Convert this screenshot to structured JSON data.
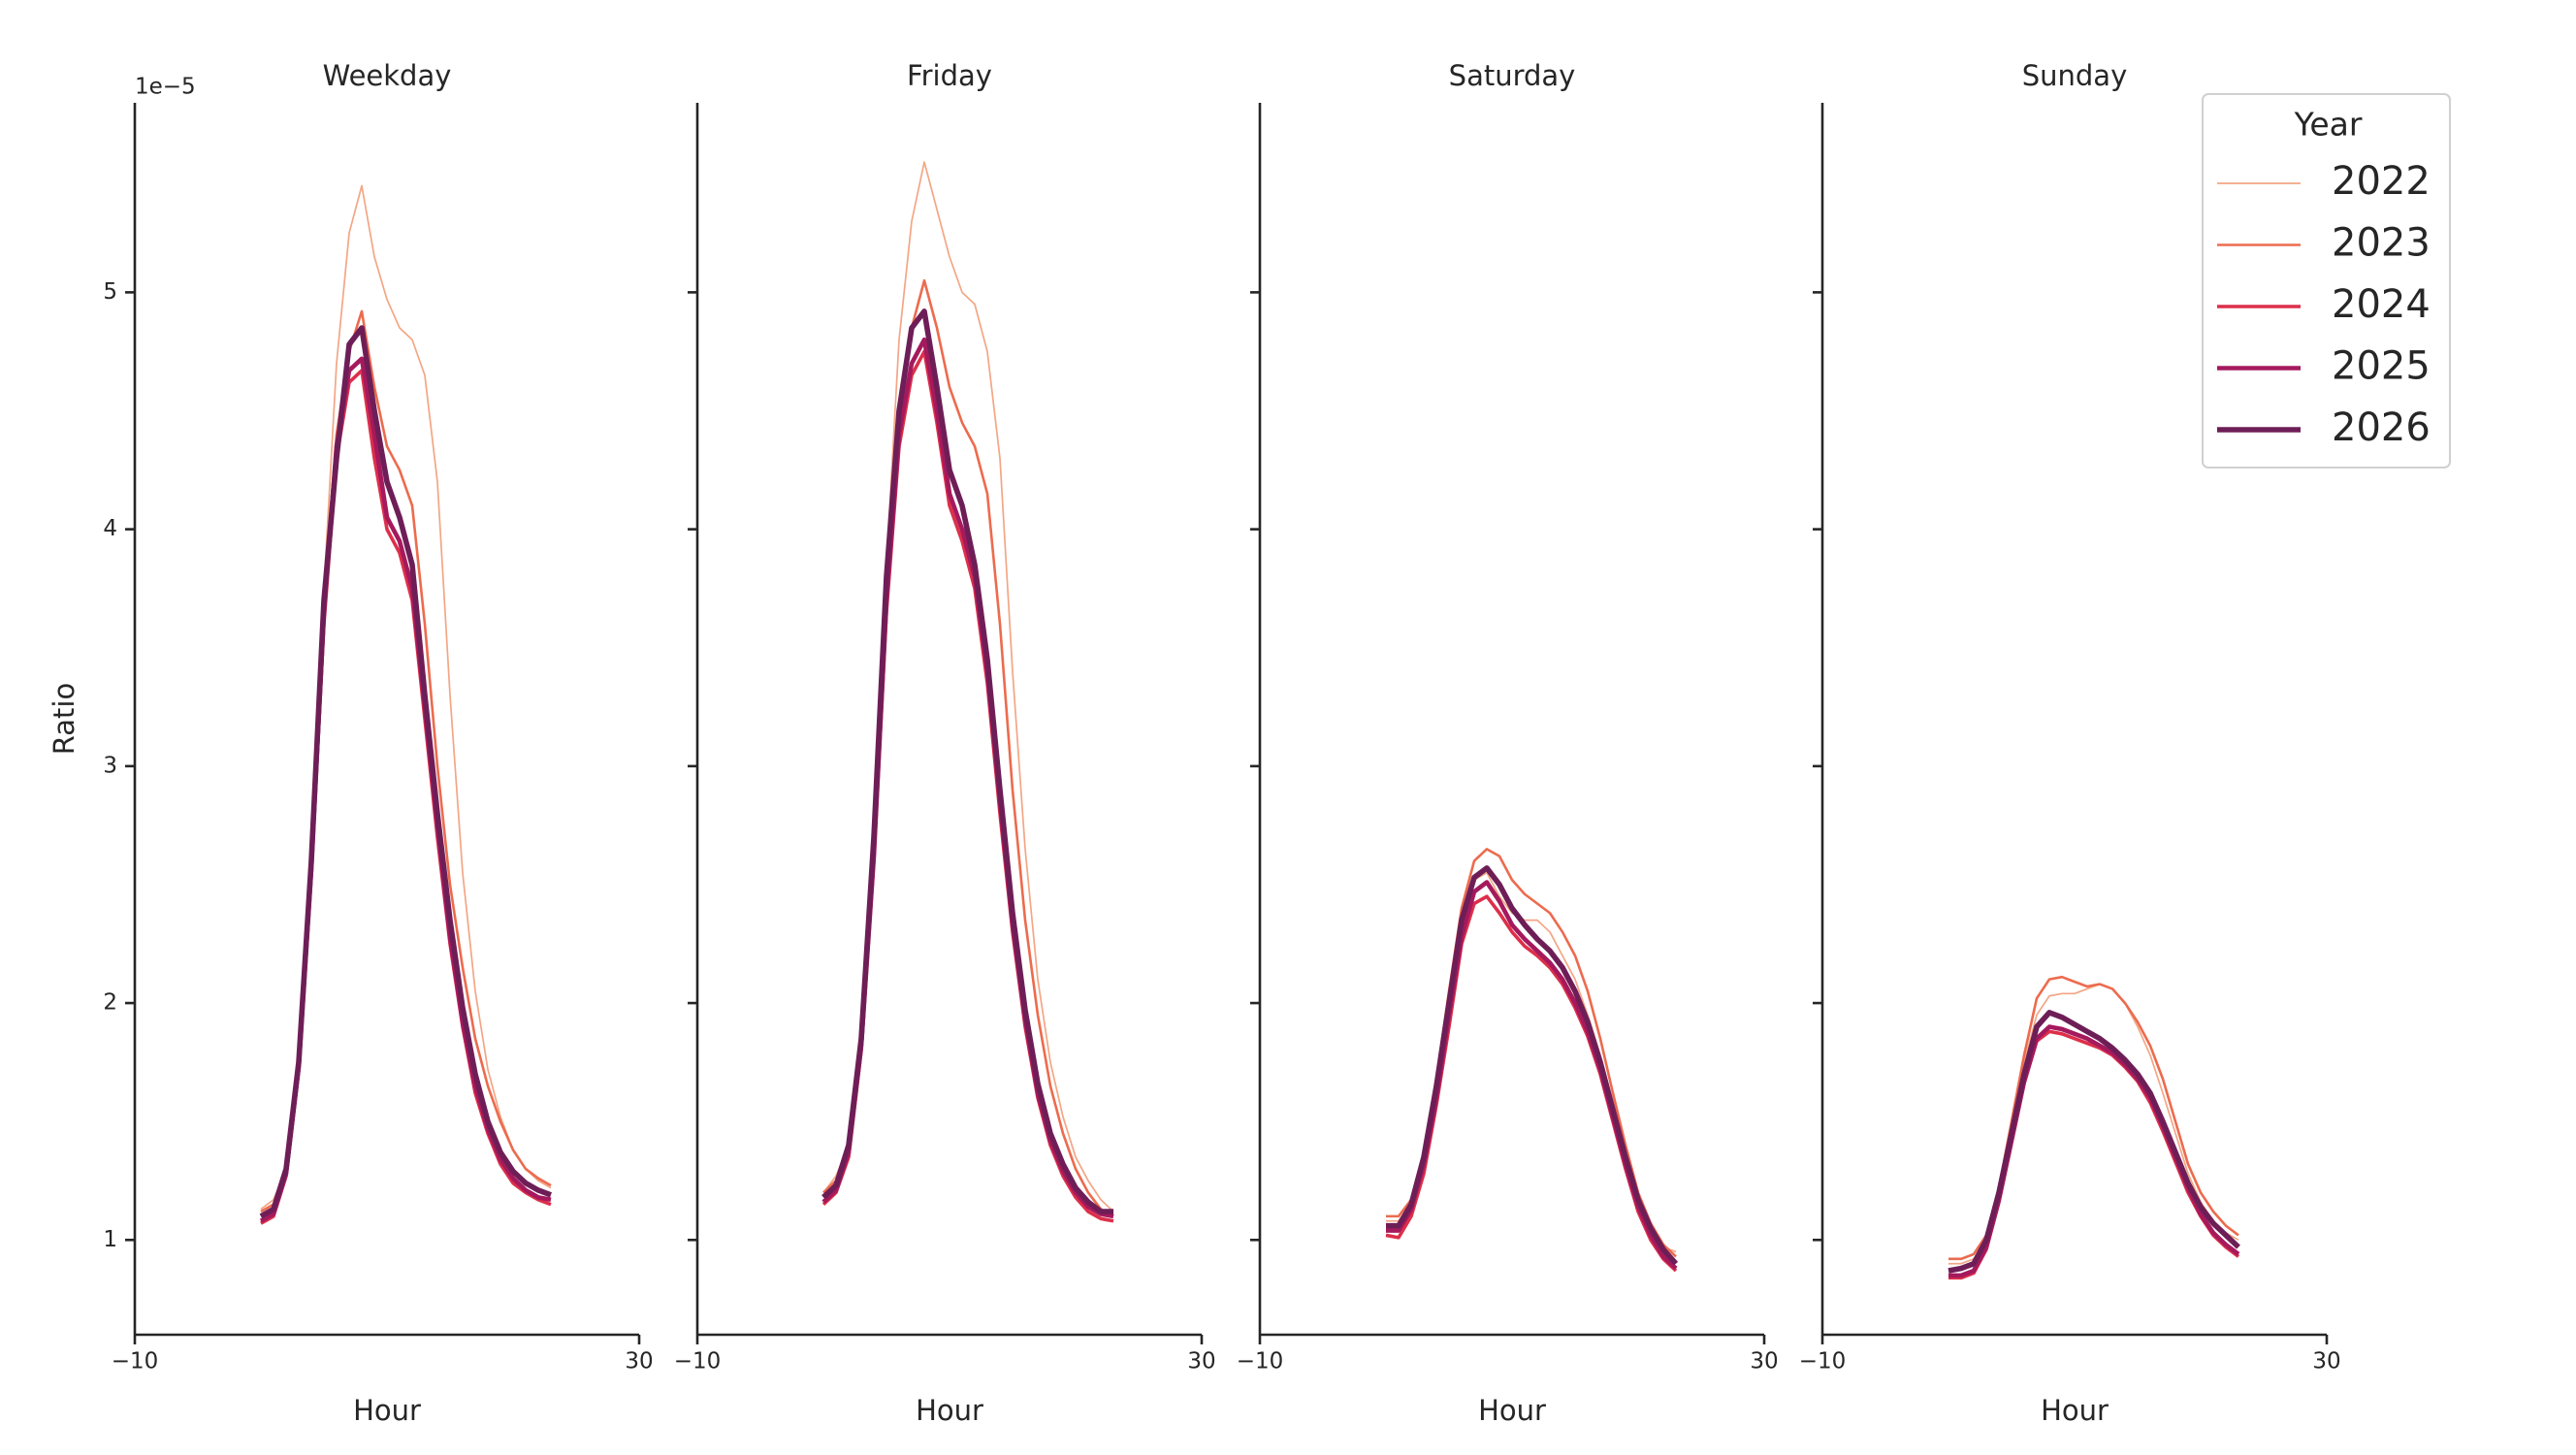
{
  "chart_data": [
    {
      "type": "line",
      "title": "Weekday",
      "x_label": "Hour",
      "y_label": "Ratio",
      "y_offset_label": "1e−5",
      "ytick_labels": true,
      "legend_title": "Year",
      "legend": "upper right",
      "x": [
        0,
        1,
        2,
        3,
        4,
        5,
        6,
        7,
        8,
        9,
        10,
        11,
        12,
        13,
        14,
        15,
        16,
        17,
        18,
        19,
        20,
        21,
        22,
        23
      ],
      "xlim": [
        -10,
        30
      ],
      "xticks": [
        {
          "value": -10,
          "label": "−10"
        },
        30
      ],
      "ylim": [
        0.6,
        5.8
      ],
      "yticks": [
        1,
        2,
        3,
        4,
        5
      ],
      "series": [
        {
          "name": "2022",
          "color": "#f3a685",
          "values": [
            1.13,
            1.17,
            1.3,
            1.75,
            2.6,
            3.75,
            4.7,
            5.25,
            5.45,
            5.15,
            4.97,
            4.85,
            4.8,
            4.65,
            4.2,
            3.3,
            2.55,
            2.05,
            1.72,
            1.52,
            1.38,
            1.3,
            1.25,
            1.22
          ]
        },
        {
          "name": "2023",
          "color": "#ec6b4e",
          "values": [
            1.12,
            1.15,
            1.3,
            1.75,
            2.6,
            3.7,
            4.4,
            4.75,
            4.92,
            4.6,
            4.35,
            4.25,
            4.1,
            3.6,
            3.0,
            2.5,
            2.15,
            1.85,
            1.65,
            1.5,
            1.38,
            1.3,
            1.26,
            1.23
          ]
        },
        {
          "name": "2024",
          "color": "#dd2f4a",
          "values": [
            1.07,
            1.1,
            1.27,
            1.72,
            2.55,
            3.6,
            4.3,
            4.62,
            4.67,
            4.3,
            4.0,
            3.9,
            3.7,
            3.2,
            2.7,
            2.25,
            1.9,
            1.62,
            1.45,
            1.32,
            1.24,
            1.2,
            1.17,
            1.15
          ]
        },
        {
          "name": "2025",
          "color": "#a5195d",
          "values": [
            1.08,
            1.11,
            1.28,
            1.73,
            2.57,
            3.65,
            4.35,
            4.67,
            4.72,
            4.4,
            4.05,
            3.95,
            3.75,
            3.25,
            2.75,
            2.28,
            1.92,
            1.65,
            1.47,
            1.34,
            1.26,
            1.21,
            1.18,
            1.17
          ]
        },
        {
          "name": "2026",
          "color": "#6e1e57",
          "values": [
            1.1,
            1.13,
            1.3,
            1.75,
            2.6,
            3.7,
            4.3,
            4.78,
            4.85,
            4.5,
            4.2,
            4.05,
            3.85,
            3.3,
            2.8,
            2.35,
            1.98,
            1.7,
            1.5,
            1.37,
            1.29,
            1.24,
            1.21,
            1.19
          ]
        }
      ]
    },
    {
      "type": "line",
      "title": "Friday",
      "x_label": "Hour",
      "ytick_labels": false,
      "x": [
        0,
        1,
        2,
        3,
        4,
        5,
        6,
        7,
        8,
        9,
        10,
        11,
        12,
        13,
        14,
        15,
        16,
        17,
        18,
        19,
        20,
        21,
        22,
        23
      ],
      "xlim": [
        -10,
        30
      ],
      "xticks": [
        {
          "value": -10,
          "label": "−10"
        },
        30
      ],
      "ylim": [
        0.6,
        5.8
      ],
      "yticks": [
        1,
        2,
        3,
        4,
        5
      ],
      "series": [
        {
          "color": "#f3a685",
          "values": [
            1.2,
            1.27,
            1.4,
            1.85,
            2.7,
            3.85,
            4.8,
            5.3,
            5.55,
            5.35,
            5.15,
            5.0,
            4.95,
            4.75,
            4.3,
            3.4,
            2.65,
            2.1,
            1.75,
            1.52,
            1.35,
            1.25,
            1.17,
            1.12
          ]
        },
        {
          "color": "#ec6b4e",
          "values": [
            1.2,
            1.25,
            1.4,
            1.85,
            2.7,
            3.8,
            4.5,
            4.85,
            5.05,
            4.85,
            4.6,
            4.45,
            4.35,
            4.15,
            3.6,
            2.9,
            2.35,
            1.95,
            1.65,
            1.45,
            1.3,
            1.2,
            1.13,
            1.1
          ]
        },
        {
          "color": "#dd2f4a",
          "values": [
            1.15,
            1.2,
            1.35,
            1.8,
            2.6,
            3.65,
            4.35,
            4.65,
            4.75,
            4.45,
            4.1,
            3.95,
            3.75,
            3.35,
            2.8,
            2.3,
            1.9,
            1.6,
            1.4,
            1.27,
            1.18,
            1.12,
            1.09,
            1.08
          ]
        },
        {
          "color": "#a5195d",
          "values": [
            1.16,
            1.21,
            1.37,
            1.82,
            2.62,
            3.7,
            4.4,
            4.7,
            4.8,
            4.5,
            4.15,
            4.0,
            3.8,
            3.4,
            2.85,
            2.33,
            1.93,
            1.62,
            1.42,
            1.29,
            1.2,
            1.14,
            1.11,
            1.1
          ]
        },
        {
          "color": "#6e1e57",
          "values": [
            1.18,
            1.23,
            1.4,
            1.85,
            2.7,
            3.8,
            4.5,
            4.85,
            4.92,
            4.6,
            4.25,
            4.1,
            3.85,
            3.45,
            2.9,
            2.38,
            1.97,
            1.66,
            1.45,
            1.32,
            1.22,
            1.16,
            1.12,
            1.12
          ]
        }
      ]
    },
    {
      "type": "line",
      "title": "Saturday",
      "x_label": "Hour",
      "ytick_labels": false,
      "x": [
        0,
        1,
        2,
        3,
        4,
        5,
        6,
        7,
        8,
        9,
        10,
        11,
        12,
        13,
        14,
        15,
        16,
        17,
        18,
        19,
        20,
        21,
        22,
        23
      ],
      "xlim": [
        -10,
        30
      ],
      "xticks": [
        {
          "value": -10,
          "label": "−10"
        },
        30
      ],
      "ylim": [
        0.6,
        5.8
      ],
      "yticks": [
        1,
        2,
        3,
        4,
        5
      ],
      "series": [
        {
          "color": "#f3a685",
          "values": [
            1.08,
            1.08,
            1.16,
            1.35,
            1.65,
            2.02,
            2.35,
            2.52,
            2.55,
            2.45,
            2.38,
            2.35,
            2.35,
            2.3,
            2.2,
            2.1,
            1.95,
            1.78,
            1.58,
            1.37,
            1.18,
            1.06,
            0.97,
            0.95
          ]
        },
        {
          "color": "#ec6b4e",
          "values": [
            1.1,
            1.1,
            1.17,
            1.37,
            1.68,
            2.05,
            2.4,
            2.6,
            2.65,
            2.62,
            2.52,
            2.46,
            2.42,
            2.38,
            2.3,
            2.2,
            2.05,
            1.85,
            1.62,
            1.4,
            1.2,
            1.07,
            0.98,
            0.93
          ]
        },
        {
          "color": "#dd2f4a",
          "values": [
            1.02,
            1.01,
            1.1,
            1.28,
            1.57,
            1.9,
            2.25,
            2.42,
            2.45,
            2.38,
            2.3,
            2.24,
            2.2,
            2.15,
            2.08,
            1.98,
            1.86,
            1.7,
            1.5,
            1.3,
            1.12,
            1.0,
            0.92,
            0.87
          ]
        },
        {
          "color": "#a5195d",
          "values": [
            1.04,
            1.04,
            1.13,
            1.32,
            1.6,
            1.95,
            2.28,
            2.47,
            2.51,
            2.43,
            2.33,
            2.27,
            2.22,
            2.17,
            2.1,
            2.0,
            1.88,
            1.72,
            1.52,
            1.32,
            1.14,
            1.02,
            0.93,
            0.88
          ]
        },
        {
          "color": "#6e1e57",
          "values": [
            1.06,
            1.06,
            1.15,
            1.35,
            1.65,
            2.0,
            2.35,
            2.53,
            2.57,
            2.5,
            2.4,
            2.33,
            2.27,
            2.22,
            2.15,
            2.05,
            1.92,
            1.75,
            1.55,
            1.35,
            1.17,
            1.05,
            0.96,
            0.9
          ]
        }
      ]
    },
    {
      "type": "line",
      "title": "Sunday",
      "x_label": "Hour",
      "ytick_labels": false,
      "x": [
        0,
        1,
        2,
        3,
        4,
        5,
        6,
        7,
        8,
        9,
        10,
        11,
        12,
        13,
        14,
        15,
        16,
        17,
        18,
        19,
        20,
        21,
        22,
        23
      ],
      "xlim": [
        -10,
        30
      ],
      "xticks": [
        {
          "value": -10,
          "label": "−10"
        },
        30
      ],
      "ylim": [
        0.6,
        5.8
      ],
      "yticks": [
        1,
        2,
        3,
        4,
        5
      ],
      "series": [
        {
          "color": "#f3a685",
          "values": [
            0.9,
            0.9,
            0.92,
            1.0,
            1.2,
            1.47,
            1.75,
            1.95,
            2.03,
            2.04,
            2.04,
            2.06,
            2.08,
            2.06,
            2.0,
            1.9,
            1.78,
            1.62,
            1.45,
            1.28,
            1.16,
            1.08,
            1.03,
            1.0
          ]
        },
        {
          "color": "#ec6b4e",
          "values": [
            0.92,
            0.92,
            0.94,
            1.02,
            1.22,
            1.5,
            1.78,
            2.02,
            2.1,
            2.11,
            2.09,
            2.07,
            2.08,
            2.06,
            2.0,
            1.92,
            1.82,
            1.68,
            1.5,
            1.32,
            1.2,
            1.12,
            1.06,
            1.02
          ]
        },
        {
          "color": "#dd2f4a",
          "values": [
            0.84,
            0.84,
            0.86,
            0.96,
            1.16,
            1.41,
            1.66,
            1.84,
            1.88,
            1.87,
            1.85,
            1.83,
            1.81,
            1.78,
            1.73,
            1.67,
            1.58,
            1.46,
            1.33,
            1.2,
            1.1,
            1.02,
            0.97,
            0.93
          ]
        },
        {
          "color": "#a5195d",
          "values": [
            0.85,
            0.85,
            0.87,
            0.97,
            1.17,
            1.42,
            1.67,
            1.85,
            1.9,
            1.89,
            1.87,
            1.85,
            1.82,
            1.79,
            1.74,
            1.68,
            1.6,
            1.48,
            1.35,
            1.22,
            1.11,
            1.03,
            0.98,
            0.94
          ]
        },
        {
          "color": "#6e1e57",
          "values": [
            0.87,
            0.88,
            0.9,
            1.0,
            1.2,
            1.45,
            1.7,
            1.9,
            1.96,
            1.94,
            1.91,
            1.88,
            1.85,
            1.81,
            1.76,
            1.7,
            1.62,
            1.5,
            1.37,
            1.24,
            1.14,
            1.07,
            1.02,
            0.97
          ]
        }
      ]
    }
  ]
}
